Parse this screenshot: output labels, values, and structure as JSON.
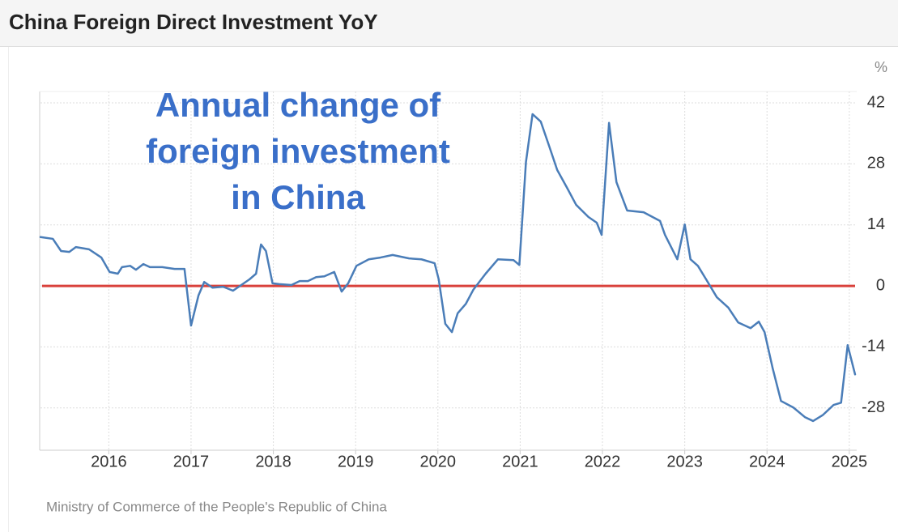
{
  "header": {
    "title": "China Foreign Direct Investment YoY"
  },
  "chart_data": {
    "type": "line",
    "unit": "%",
    "annotation": [
      "Annual change of",
      "foreign investment",
      "in China"
    ],
    "source": "Ministry of Commerce of the People's Republic of China",
    "x": [
      2015.17,
      2015.32,
      2015.42,
      2015.52,
      2015.6,
      2015.76,
      2015.91,
      2016.01,
      2016.11,
      2016.16,
      2016.26,
      2016.33,
      2016.42,
      2016.5,
      2016.65,
      2016.8,
      2016.92,
      2017.0,
      2017.09,
      2017.16,
      2017.26,
      2017.39,
      2017.51,
      2017.61,
      2017.71,
      2017.79,
      2017.85,
      2017.91,
      2017.99,
      2018.07,
      2018.22,
      2018.32,
      2018.42,
      2018.52,
      2018.62,
      2018.74,
      2018.83,
      2018.91,
      2019.01,
      2019.16,
      2019.3,
      2019.45,
      2019.65,
      2019.8,
      2019.96,
      2020.01,
      2020.09,
      2020.17,
      2020.24,
      2020.34,
      2020.43,
      2020.58,
      2020.73,
      2020.92,
      2020.99,
      2021.07,
      2021.15,
      2021.25,
      2021.35,
      2021.45,
      2021.57,
      2021.68,
      2021.83,
      2021.93,
      2021.99,
      2022.08,
      2022.17,
      2022.3,
      2022.5,
      2022.7,
      2022.76,
      2022.91,
      2023.0,
      2023.07,
      2023.16,
      2023.26,
      2023.39,
      2023.53,
      2023.65,
      2023.8,
      2023.9,
      2023.97,
      2024.07,
      2024.17,
      2024.32,
      2024.46,
      2024.56,
      2024.68,
      2024.81,
      2024.9,
      2024.98,
      2025.07
    ],
    "series": [
      {
        "color": "#4a7db8",
        "values": [
          11.2,
          10.8,
          8.0,
          7.8,
          8.9,
          8.4,
          6.5,
          3.2,
          2.8,
          4.3,
          4.6,
          3.7,
          5.0,
          4.3,
          4.3,
          3.9,
          3.9,
          -9.1,
          -2.2,
          0.9,
          -0.4,
          -0.2,
          -1.1,
          0.2,
          1.5,
          2.8,
          9.5,
          8.0,
          0.6,
          0.4,
          0.2,
          1.1,
          1.1,
          2.0,
          2.2,
          3.2,
          -1.3,
          0.6,
          4.6,
          6.1,
          6.5,
          7.1,
          6.3,
          6.1,
          5.2,
          1.5,
          -8.7,
          -10.6,
          -6.3,
          -4.1,
          -0.9,
          2.8,
          6.1,
          5.9,
          4.8,
          28.4,
          39.4,
          37.7,
          32.2,
          26.6,
          22.5,
          18.6,
          15.8,
          14.5,
          11.7,
          37.4,
          23.8,
          17.3,
          16.9,
          14.9,
          11.7,
          6.1,
          14.1,
          6.1,
          4.6,
          1.5,
          -2.6,
          -5.0,
          -8.4,
          -9.7,
          -8.2,
          -10.6,
          -19.0,
          -26.4,
          -27.9,
          -30.1,
          -31.0,
          -29.6,
          -27.3,
          -26.8,
          -13.6,
          -20.3
        ]
      }
    ],
    "reference_line": {
      "value": 0,
      "color": "#d9413b"
    },
    "xlim": [
      2015.17,
      2025.09
    ],
    "xticks": [
      2016,
      2017,
      2018,
      2019,
      2020,
      2021,
      2022,
      2023,
      2024,
      2025
    ],
    "ylim": [
      -37.7,
      44.6
    ],
    "yticks": [
      -28,
      -14,
      0,
      14,
      28,
      42
    ],
    "grid": true,
    "annotation_color": "#3a6fc9"
  }
}
